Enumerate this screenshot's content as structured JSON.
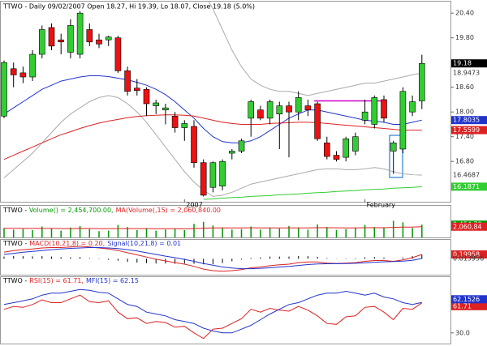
{
  "chart_data": [
    {
      "type": "candlestick",
      "title": "TTWO - Daily 09/02/2007 Open 18.27, Hi 19.39, Lo 18.07, Close 19.18 (5.0%)",
      "categories": [
        null,
        null,
        null,
        null,
        null,
        null,
        null,
        null,
        null,
        null,
        null,
        null,
        null,
        null,
        null,
        null,
        null,
        null,
        null,
        "2007",
        null,
        null,
        null,
        null,
        null,
        null,
        null,
        null,
        null,
        null,
        null,
        null,
        null,
        null,
        null,
        null,
        null,
        null,
        "February",
        null,
        null,
        null,
        null,
        null,
        null
      ],
      "open": [
        17.9,
        19.05,
        18.95,
        18.85,
        19.4,
        20.05,
        19.75,
        19.45,
        19.4,
        20.0,
        19.75,
        19.75,
        19.8,
        19.0,
        18.58,
        18.55,
        18.15,
        18.05,
        17.9,
        17.62,
        17.65,
        16.77,
        16.17,
        16.2,
        17.0,
        17.05,
        17.85,
        18.05,
        17.85,
        17.95,
        18.15,
        18.0,
        18.15,
        18.2,
        17.25,
        16.95,
        16.9,
        17.05,
        17.8,
        17.7,
        18.3,
        17.05,
        17.1,
        18.0,
        18.27
      ],
      "high": [
        19.25,
        19.2,
        19.1,
        19.5,
        20.1,
        20.15,
        19.9,
        20.25,
        20.45,
        20.15,
        19.9,
        19.85,
        19.85,
        19.1,
        18.8,
        18.6,
        18.3,
        18.2,
        18.0,
        17.8,
        17.8,
        16.85,
        16.8,
        16.85,
        17.1,
        17.35,
        18.3,
        18.15,
        18.3,
        18.25,
        18.25,
        18.5,
        18.3,
        18.25,
        17.4,
        17.05,
        17.4,
        17.5,
        18.3,
        18.4,
        18.4,
        17.3,
        18.6,
        18.4,
        19.39
      ],
      "low": [
        17.85,
        18.6,
        18.7,
        18.75,
        19.3,
        19.5,
        19.4,
        19.3,
        19.3,
        19.6,
        19.55,
        19.6,
        18.95,
        18.4,
        18.4,
        17.9,
        17.95,
        17.7,
        17.5,
        17.3,
        16.65,
        15.95,
        16.05,
        16.1,
        16.85,
        17.0,
        17.4,
        17.8,
        17.7,
        17.1,
        16.9,
        17.8,
        17.9,
        17.3,
        16.85,
        16.8,
        16.8,
        16.95,
        17.7,
        17.6,
        17.75,
        16.5,
        17.0,
        17.9,
        18.07
      ],
      "close": [
        19.2,
        18.9,
        18.85,
        19.4,
        20.0,
        19.6,
        19.7,
        20.1,
        20.4,
        19.7,
        19.65,
        19.82,
        19.0,
        18.5,
        18.52,
        18.2,
        18.22,
        18.1,
        17.62,
        17.72,
        16.77,
        15.98,
        16.77,
        16.8,
        17.05,
        17.3,
        18.25,
        17.85,
        18.25,
        18.15,
        18.0,
        18.35,
        18.05,
        17.35,
        16.92,
        16.85,
        17.35,
        17.4,
        18.0,
        18.35,
        17.85,
        17.25,
        18.5,
        18.25,
        19.18
      ],
      "up_color": "#33cc33",
      "down_color": "#ee1111",
      "overlays": [
        {
          "color": "#aaaaaa",
          "last_label": "18.9473",
          "values": [
            20.8,
            20.9,
            21.0,
            21.0,
            21.0,
            21.0,
            21.0,
            20.9,
            20.8,
            20.8,
            20.8,
            20.8,
            20.8,
            20.8,
            20.8,
            20.8,
            20.8,
            20.8,
            20.8,
            20.9,
            21.0,
            20.9,
            20.5,
            20.0,
            19.5,
            19.1,
            18.8,
            18.65,
            18.55,
            18.5,
            18.5,
            18.45,
            18.4,
            18.45,
            18.5,
            18.55,
            18.6,
            18.65,
            18.7,
            18.7,
            18.75,
            18.8,
            18.85,
            18.9,
            18.9473
          ]
        },
        {
          "color": "#aaaaaa",
          "last_label": "16.4687",
          "values": [
            16.4,
            16.6,
            16.8,
            17.0,
            17.25,
            17.5,
            17.75,
            17.95,
            18.1,
            18.25,
            18.35,
            18.4,
            18.35,
            18.2,
            18.0,
            17.75,
            17.45,
            17.15,
            16.85,
            16.55,
            16.3,
            16.1,
            15.95,
            15.98,
            16.05,
            16.15,
            16.25,
            16.3,
            16.35,
            16.4,
            16.45,
            16.5,
            16.55,
            16.6,
            16.62,
            16.62,
            16.6,
            16.6,
            16.62,
            16.65,
            16.62,
            16.55,
            16.5,
            16.48,
            16.4687
          ]
        },
        {
          "color": "#2233cc",
          "last_label": "17.8035",
          "values": [
            17.95,
            18.1,
            18.25,
            18.4,
            18.55,
            18.65,
            18.75,
            18.8,
            18.85,
            18.88,
            18.88,
            18.86,
            18.82,
            18.78,
            18.72,
            18.65,
            18.55,
            18.42,
            18.25,
            18.05,
            17.85,
            17.6,
            17.4,
            17.28,
            17.25,
            17.25,
            17.3,
            17.4,
            17.55,
            17.7,
            17.85,
            17.95,
            18.05,
            18.05,
            18.0,
            17.95,
            17.9,
            17.85,
            17.8,
            17.78,
            17.75,
            17.7,
            17.7,
            17.75,
            17.8035
          ]
        },
        {
          "color": "#dd2222",
          "last_label": "17.5599",
          "values": [
            16.85,
            16.95,
            17.05,
            17.15,
            17.25,
            17.35,
            17.45,
            17.52,
            17.6,
            17.67,
            17.73,
            17.78,
            17.82,
            17.86,
            17.89,
            17.91,
            17.92,
            17.93,
            17.93,
            17.92,
            17.9,
            17.85,
            17.8,
            17.75,
            17.72,
            17.7,
            17.7,
            17.7,
            17.72,
            17.73,
            17.74,
            17.75,
            17.75,
            17.74,
            17.72,
            17.7,
            17.68,
            17.66,
            17.64,
            17.62,
            17.6,
            17.58,
            17.56,
            17.56,
            17.5599
          ]
        },
        {
          "color": "#33cc33",
          "last_label": "16.1871",
          "values": [
            null,
            null,
            null,
            null,
            null,
            null,
            null,
            null,
            null,
            null,
            null,
            null,
            null,
            null,
            null,
            null,
            null,
            null,
            null,
            null,
            null,
            15.88,
            15.89,
            15.91,
            15.92,
            15.93,
            15.95,
            15.96,
            15.97,
            15.99,
            16.0,
            16.01,
            16.03,
            16.04,
            16.05,
            16.07,
            16.08,
            16.09,
            16.11,
            16.12,
            16.13,
            16.15,
            16.16,
            16.17,
            16.1871
          ]
        }
      ],
      "level": {
        "value": 18.27,
        "color": "#cc00cc"
      },
      "ylim": [
        15.86,
        20.62
      ],
      "yticks": [
        {
          "value": 16.8,
          "label": "16.80"
        },
        {
          "value": 17.4,
          "label": "17.40"
        },
        {
          "value": 18.0,
          "label": "18.00"
        },
        {
          "value": 18.6,
          "label": "18.60"
        },
        {
          "value": 19.8,
          "label": "19.80"
        },
        {
          "value": 20.4,
          "label": "20.40"
        }
      ]
    },
    {
      "type": "bar",
      "title": "TTWO -",
      "ylim": [
        0,
        5600000
      ],
      "series": [
        {
          "name": "Volume() = 2,454,700.00,",
          "color": "#009900",
          "last_label": "2,454,70",
          "values": [
            1800000,
            1500000,
            1600000,
            1400000,
            2100000,
            1700000,
            1300000,
            1900000,
            2200000,
            1600000,
            1200000,
            1300000,
            2400000,
            2000000,
            1400000,
            1800000,
            1300000,
            1500000,
            1700000,
            1400000,
            2600000,
            3000000,
            2300000,
            1900000,
            1500000,
            1600000,
            2100000,
            1500000,
            1800000,
            1700000,
            2200000,
            1900000,
            1500000,
            2500000,
            2000000,
            1400000,
            1600000,
            1800000,
            2400000,
            2000000,
            1900000,
            3200000,
            2900000,
            1800000,
            2454700
          ]
        },
        {
          "name": "MA(Volume(,15) = 2,060,840.00",
          "color": "#dd2222",
          "last_label": "2,060,84",
          "values": [
            1750000,
            1740000,
            1730000,
            1720000,
            1730000,
            1720000,
            1700000,
            1700000,
            1720000,
            1710000,
            1690000,
            1670000,
            1690000,
            1700000,
            1690000,
            1690000,
            1670000,
            1660000,
            1660000,
            1650000,
            1700000,
            1780000,
            1820000,
            1840000,
            1830000,
            1830000,
            1850000,
            1830000,
            1830000,
            1820000,
            1830000,
            1840000,
            1830000,
            1860000,
            1870000,
            1850000,
            1840000,
            1840000,
            1860000,
            1870000,
            1870000,
            1930000,
            1980000,
            1990000,
            2060840
          ]
        }
      ]
    },
    {
      "type": "line",
      "title": "TTWO -",
      "ylim": [
        -0.7,
        0.8
      ],
      "histogram": {
        "color": "#000000",
        "values": [
          0.1,
          0.13,
          0.12,
          0.11,
          0.12,
          0.1,
          0.07,
          0.07,
          0.08,
          0.03,
          -0.02,
          -0.05,
          -0.09,
          -0.14,
          -0.18,
          -0.2,
          -0.22,
          -0.22,
          -0.23,
          -0.22,
          -0.23,
          -0.26,
          -0.25,
          -0.2,
          -0.12,
          -0.04,
          0.04,
          0.06,
          0.1,
          0.1,
          0.1,
          0.13,
          0.12,
          0.09,
          0.03,
          0.01,
          0.02,
          0.03,
          0.07,
          0.08,
          0.06,
          0.01,
          0.06,
          0.12,
          0.19
        ]
      },
      "series": [
        {
          "name": "MACD(10,21,8) = 0.20,",
          "color": "#dd2222",
          "last_label": "0.19958",
          "values": [
            0.3,
            0.38,
            0.42,
            0.45,
            0.5,
            0.52,
            0.52,
            0.55,
            0.58,
            0.55,
            0.5,
            0.45,
            0.38,
            0.28,
            0.18,
            0.08,
            -0.02,
            -0.1,
            -0.18,
            -0.25,
            -0.35,
            -0.48,
            -0.55,
            -0.58,
            -0.55,
            -0.5,
            -0.42,
            -0.38,
            -0.32,
            -0.28,
            -0.25,
            -0.18,
            -0.15,
            -0.15,
            -0.2,
            -0.22,
            -0.2,
            -0.18,
            -0.12,
            -0.08,
            -0.08,
            -0.12,
            -0.05,
            0.05,
            0.19958
          ]
        },
        {
          "name": "Signal(10,21,8) = 0.01",
          "color": "#2233cc",
          "last_label": "0.013956",
          "values": [
            0.2,
            0.25,
            0.3,
            0.34,
            0.38,
            0.42,
            0.45,
            0.48,
            0.5,
            0.52,
            0.52,
            0.5,
            0.47,
            0.42,
            0.36,
            0.28,
            0.2,
            0.12,
            0.05,
            -0.03,
            -0.12,
            -0.22,
            -0.3,
            -0.38,
            -0.43,
            -0.46,
            -0.46,
            -0.44,
            -0.42,
            -0.38,
            -0.35,
            -0.31,
            -0.27,
            -0.24,
            -0.23,
            -0.23,
            -0.22,
            -0.21,
            -0.19,
            -0.16,
            -0.14,
            -0.13,
            -0.11,
            -0.07,
            0.013956
          ]
        }
      ]
    },
    {
      "type": "line",
      "title": "TTWO -",
      "ylim": [
        18.7,
        89
      ],
      "yticks": [
        {
          "value": 30,
          "label": "30.0"
        }
      ],
      "series": [
        {
          "name": "RSI(15) = 61.71,",
          "color": "#dd2222",
          "last_label": "61.71",
          "values": [
            55,
            58,
            57,
            60,
            65,
            62,
            62,
            66,
            70,
            63,
            62,
            64,
            52,
            45,
            46,
            40,
            42,
            41,
            36,
            37,
            30,
            24,
            34,
            35,
            40,
            45,
            55,
            52,
            56,
            54,
            53,
            58,
            54,
            48,
            40,
            39,
            47,
            48,
            57,
            58,
            52,
            44,
            56,
            55,
            61.71
          ]
        },
        {
          "name": "MFI(15) = 62.15",
          "color": "#2233cc",
          "last_label": "62.1526",
          "values": [
            60,
            62,
            64,
            66,
            70,
            72,
            72,
            74,
            76,
            75,
            73,
            72,
            66,
            60,
            58,
            52,
            50,
            48,
            44,
            42,
            40,
            35,
            32,
            30,
            30,
            34,
            38,
            44,
            50,
            55,
            60,
            62,
            66,
            70,
            72,
            72,
            74,
            72,
            70,
            72,
            68,
            66,
            62,
            60,
            62.15
          ]
        }
      ]
    }
  ]
}
